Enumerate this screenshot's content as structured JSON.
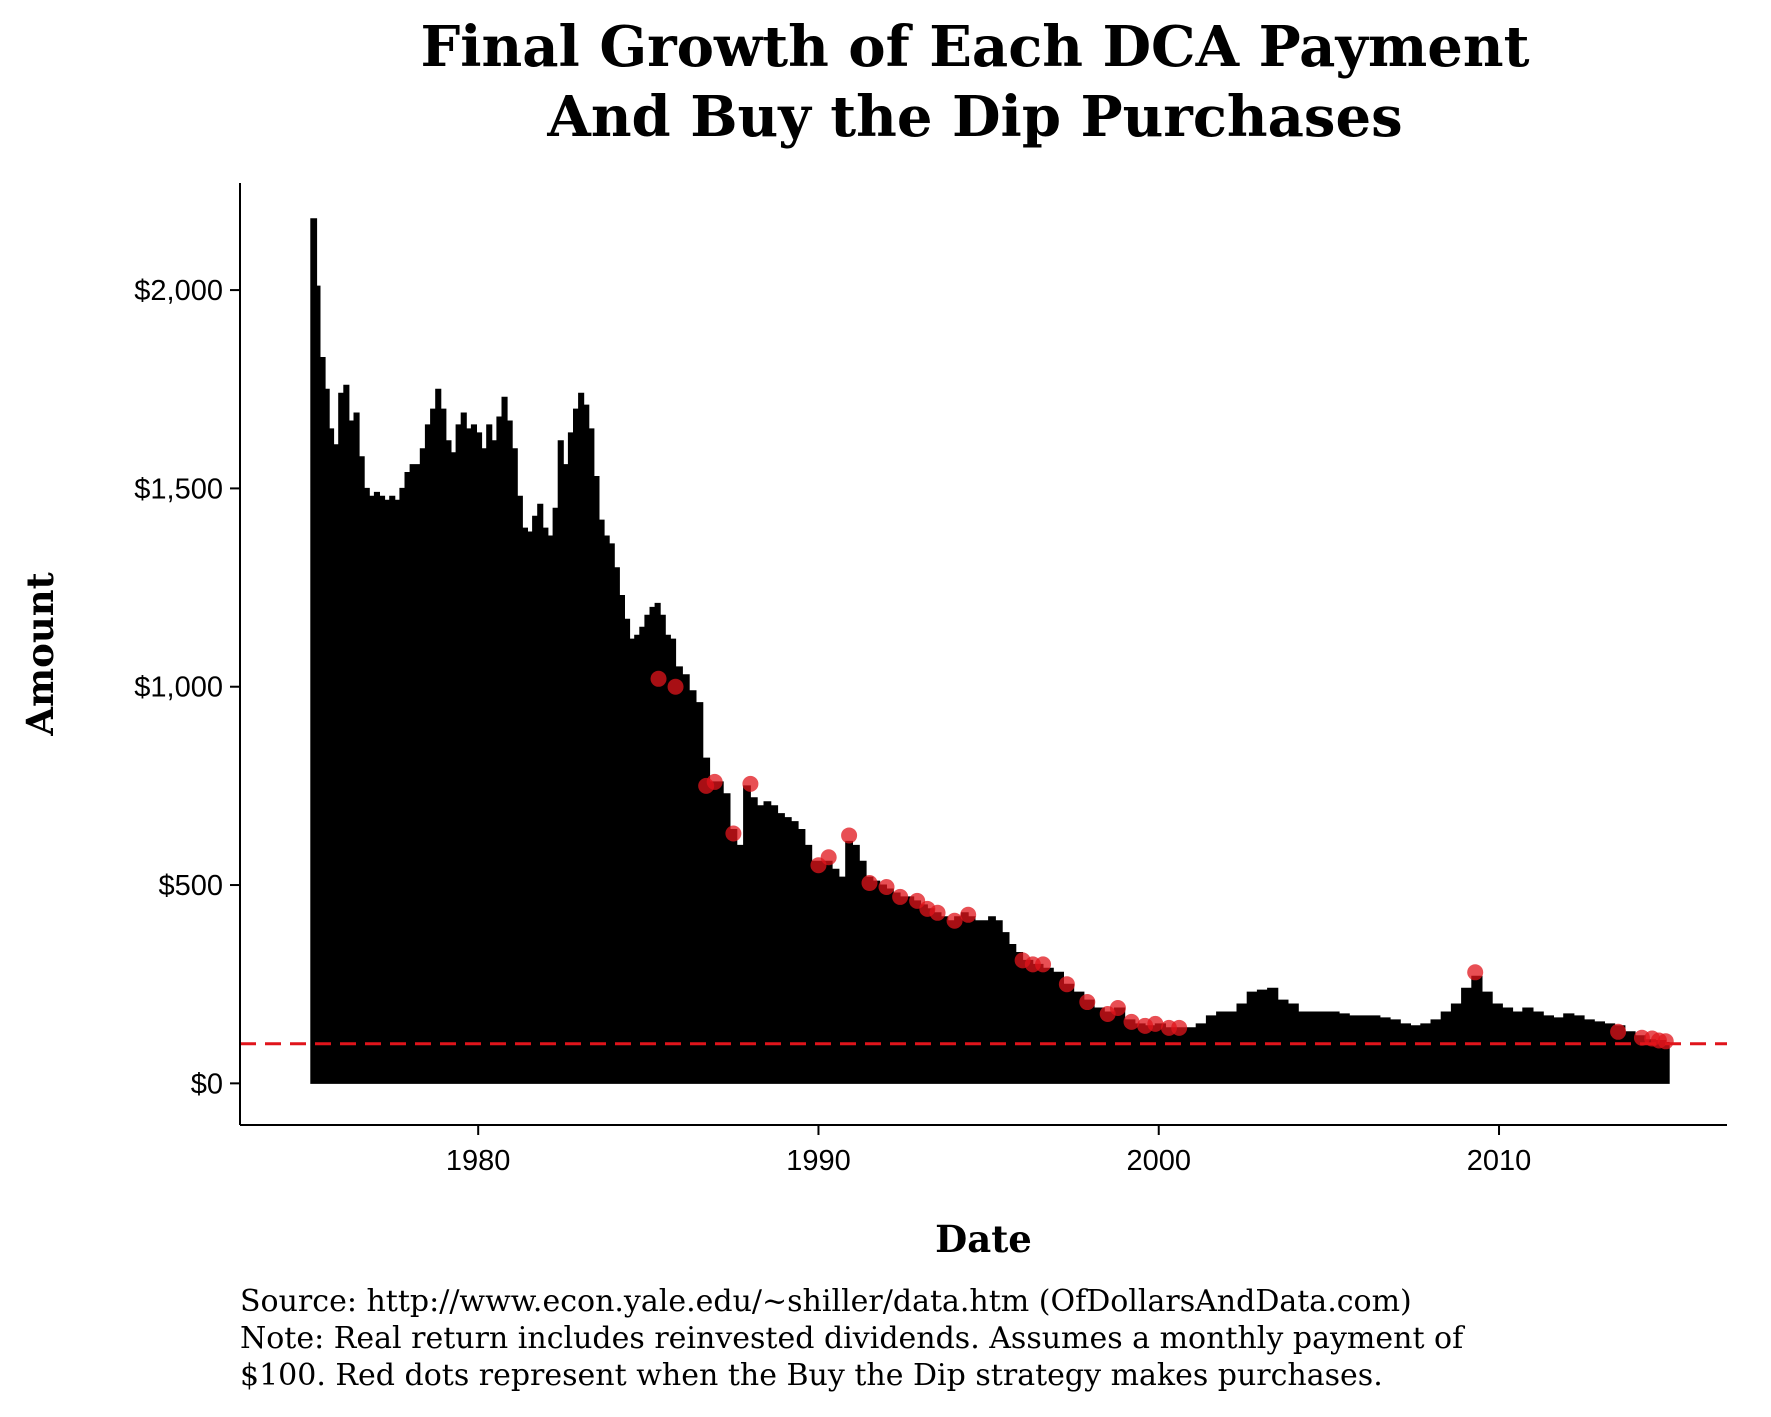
{
  "chart_data": {
    "type": "area",
    "title": [
      "Final Growth of Each DCA Payment",
      "And Buy the Dip Purchases"
    ],
    "xlabel": "Date",
    "ylabel": "Amount",
    "xlim": [
      1973.0,
      2016.7
    ],
    "ylim": [
      -105,
      2270
    ],
    "x_ticks": [
      1980,
      1990,
      2000,
      2010
    ],
    "x_tick_labels": [
      "1980",
      "1990",
      "2000",
      "2010"
    ],
    "y_ticks": [
      0,
      500,
      1000,
      1500,
      2000
    ],
    "y_tick_labels": [
      "$0",
      "$500",
      "$1,000",
      "$1,500",
      "$2,000"
    ],
    "grid": false,
    "reference_line": {
      "y": 100,
      "style": "dashed",
      "color": "#e0141b"
    },
    "series": [
      {
        "type": "area",
        "color": "#000000",
        "points": [
          [
            1975.08,
            2180
          ],
          [
            1975.25,
            2010
          ],
          [
            1975.35,
            1830
          ],
          [
            1975.5,
            1750
          ],
          [
            1975.62,
            1650
          ],
          [
            1975.75,
            1610
          ],
          [
            1975.9,
            1740
          ],
          [
            1976.05,
            1760
          ],
          [
            1976.2,
            1670
          ],
          [
            1976.35,
            1690
          ],
          [
            1976.5,
            1580
          ],
          [
            1976.65,
            1500
          ],
          [
            1976.8,
            1480
          ],
          [
            1976.95,
            1490
          ],
          [
            1977.1,
            1480
          ],
          [
            1977.25,
            1470
          ],
          [
            1977.4,
            1480
          ],
          [
            1977.55,
            1470
          ],
          [
            1977.7,
            1500
          ],
          [
            1977.85,
            1540
          ],
          [
            1978.0,
            1560
          ],
          [
            1978.15,
            1560
          ],
          [
            1978.3,
            1600
          ],
          [
            1978.45,
            1660
          ],
          [
            1978.6,
            1700
          ],
          [
            1978.75,
            1750
          ],
          [
            1978.9,
            1700
          ],
          [
            1979.05,
            1620
          ],
          [
            1979.2,
            1590
          ],
          [
            1979.35,
            1660
          ],
          [
            1979.5,
            1690
          ],
          [
            1979.65,
            1650
          ],
          [
            1979.8,
            1660
          ],
          [
            1979.95,
            1640
          ],
          [
            1980.1,
            1600
          ],
          [
            1980.25,
            1660
          ],
          [
            1980.4,
            1620
          ],
          [
            1980.55,
            1680
          ],
          [
            1980.7,
            1730
          ],
          [
            1980.85,
            1670
          ],
          [
            1981.0,
            1600
          ],
          [
            1981.15,
            1480
          ],
          [
            1981.3,
            1400
          ],
          [
            1981.45,
            1390
          ],
          [
            1981.6,
            1430
          ],
          [
            1981.75,
            1460
          ],
          [
            1981.9,
            1400
          ],
          [
            1982.05,
            1380
          ],
          [
            1982.2,
            1450
          ],
          [
            1982.35,
            1620
          ],
          [
            1982.5,
            1560
          ],
          [
            1982.65,
            1640
          ],
          [
            1982.8,
            1700
          ],
          [
            1982.95,
            1740
          ],
          [
            1983.1,
            1710
          ],
          [
            1983.25,
            1650
          ],
          [
            1983.4,
            1530
          ],
          [
            1983.55,
            1420
          ],
          [
            1983.7,
            1380
          ],
          [
            1983.85,
            1360
          ],
          [
            1984.0,
            1300
          ],
          [
            1984.15,
            1230
          ],
          [
            1984.3,
            1170
          ],
          [
            1984.45,
            1120
          ],
          [
            1984.6,
            1130
          ],
          [
            1984.75,
            1150
          ],
          [
            1984.9,
            1180
          ],
          [
            1985.05,
            1200
          ],
          [
            1985.2,
            1210
          ],
          [
            1985.35,
            1180
          ],
          [
            1985.5,
            1130
          ],
          [
            1985.65,
            1120
          ],
          [
            1985.8,
            1050
          ],
          [
            1986.0,
            1030
          ],
          [
            1986.2,
            990
          ],
          [
            1986.4,
            960
          ],
          [
            1986.6,
            820
          ],
          [
            1986.8,
            760
          ],
          [
            1987.0,
            760
          ],
          [
            1987.2,
            730
          ],
          [
            1987.4,
            640
          ],
          [
            1987.6,
            600
          ],
          [
            1987.8,
            750
          ],
          [
            1988.0,
            720
          ],
          [
            1988.2,
            700
          ],
          [
            1988.4,
            710
          ],
          [
            1988.6,
            700
          ],
          [
            1988.8,
            680
          ],
          [
            1989.0,
            670
          ],
          [
            1989.2,
            660
          ],
          [
            1989.4,
            640
          ],
          [
            1989.6,
            600
          ],
          [
            1989.8,
            560
          ],
          [
            1990.0,
            560
          ],
          [
            1990.2,
            560
          ],
          [
            1990.4,
            540
          ],
          [
            1990.6,
            520
          ],
          [
            1990.8,
            610
          ],
          [
            1991.0,
            600
          ],
          [
            1991.2,
            560
          ],
          [
            1991.4,
            520
          ],
          [
            1991.6,
            510
          ],
          [
            1991.8,
            500
          ],
          [
            1992.0,
            490
          ],
          [
            1992.2,
            480
          ],
          [
            1992.4,
            470
          ],
          [
            1992.6,
            470
          ],
          [
            1992.8,
            460
          ],
          [
            1993.0,
            450
          ],
          [
            1993.2,
            440
          ],
          [
            1993.4,
            430
          ],
          [
            1993.6,
            420
          ],
          [
            1993.8,
            410
          ],
          [
            1994.0,
            420
          ],
          [
            1994.2,
            430
          ],
          [
            1994.4,
            420
          ],
          [
            1994.6,
            410
          ],
          [
            1994.8,
            410
          ],
          [
            1995.0,
            420
          ],
          [
            1995.2,
            410
          ],
          [
            1995.4,
            380
          ],
          [
            1995.6,
            350
          ],
          [
            1995.8,
            330
          ],
          [
            1996.0,
            310
          ],
          [
            1996.3,
            300
          ],
          [
            1996.6,
            290
          ],
          [
            1996.9,
            280
          ],
          [
            1997.2,
            250
          ],
          [
            1997.5,
            230
          ],
          [
            1997.8,
            210
          ],
          [
            1998.1,
            190
          ],
          [
            1998.4,
            180
          ],
          [
            1998.7,
            190
          ],
          [
            1999.0,
            160
          ],
          [
            1999.3,
            150
          ],
          [
            1999.6,
            145
          ],
          [
            1999.9,
            150
          ],
          [
            2000.2,
            140
          ],
          [
            2000.5,
            140
          ],
          [
            2000.8,
            140
          ],
          [
            2001.1,
            150
          ],
          [
            2001.4,
            170
          ],
          [
            2001.7,
            180
          ],
          [
            2002.0,
            180
          ],
          [
            2002.3,
            200
          ],
          [
            2002.6,
            230
          ],
          [
            2002.9,
            235
          ],
          [
            2003.2,
            240
          ],
          [
            2003.5,
            210
          ],
          [
            2003.8,
            200
          ],
          [
            2004.1,
            180
          ],
          [
            2004.4,
            180
          ],
          [
            2004.7,
            180
          ],
          [
            2005.0,
            180
          ],
          [
            2005.3,
            175
          ],
          [
            2005.6,
            170
          ],
          [
            2005.9,
            170
          ],
          [
            2006.2,
            170
          ],
          [
            2006.5,
            165
          ],
          [
            2006.8,
            160
          ],
          [
            2007.1,
            150
          ],
          [
            2007.4,
            145
          ],
          [
            2007.7,
            150
          ],
          [
            2008.0,
            160
          ],
          [
            2008.3,
            180
          ],
          [
            2008.6,
            200
          ],
          [
            2008.9,
            240
          ],
          [
            2009.2,
            270
          ],
          [
            2009.5,
            230
          ],
          [
            2009.8,
            200
          ],
          [
            2010.1,
            190
          ],
          [
            2010.4,
            180
          ],
          [
            2010.7,
            190
          ],
          [
            2011.0,
            180
          ],
          [
            2011.3,
            170
          ],
          [
            2011.6,
            165
          ],
          [
            2011.9,
            175
          ],
          [
            2012.2,
            170
          ],
          [
            2012.5,
            160
          ],
          [
            2012.8,
            155
          ],
          [
            2013.1,
            150
          ],
          [
            2013.4,
            145
          ],
          [
            2013.7,
            130
          ],
          [
            2014.0,
            120
          ],
          [
            2014.3,
            110
          ],
          [
            2014.6,
            108
          ],
          [
            2014.9,
            103
          ]
        ]
      },
      {
        "name": "Buy the Dip purchases",
        "type": "scatter",
        "color": "#e0141b",
        "points": [
          [
            1985.3,
            1020
          ],
          [
            1985.8,
            1000
          ],
          [
            1986.7,
            750
          ],
          [
            1986.95,
            760
          ],
          [
            1987.5,
            630
          ],
          [
            1988.0,
            755
          ],
          [
            1990.0,
            550
          ],
          [
            1990.3,
            570
          ],
          [
            1990.9,
            625
          ],
          [
            1991.5,
            505
          ],
          [
            1992.0,
            495
          ],
          [
            1992.4,
            470
          ],
          [
            1992.9,
            460
          ],
          [
            1993.2,
            440
          ],
          [
            1993.5,
            430
          ],
          [
            1994.0,
            410
          ],
          [
            1994.4,
            425
          ],
          [
            1996.0,
            310
          ],
          [
            1996.3,
            300
          ],
          [
            1996.6,
            300
          ],
          [
            1997.3,
            250
          ],
          [
            1997.9,
            205
          ],
          [
            1998.5,
            175
          ],
          [
            1998.8,
            190
          ],
          [
            1999.2,
            155
          ],
          [
            1999.6,
            145
          ],
          [
            1999.9,
            150
          ],
          [
            2000.3,
            140
          ],
          [
            2000.6,
            140
          ],
          [
            2009.3,
            280
          ],
          [
            2013.5,
            130
          ],
          [
            2014.2,
            115
          ],
          [
            2014.5,
            113
          ],
          [
            2014.7,
            108
          ],
          [
            2014.9,
            106
          ]
        ]
      }
    ]
  },
  "caption": {
    "line1": "Source:  http://www.econ.yale.edu/~shiller/data.htm (OfDollarsAndData.com)",
    "line2": "Note: Real return includes reinvested dividends. Assumes a monthly payment of",
    "line3": "$100. Red dots represent when the Buy the Dip strategy makes purchases."
  }
}
